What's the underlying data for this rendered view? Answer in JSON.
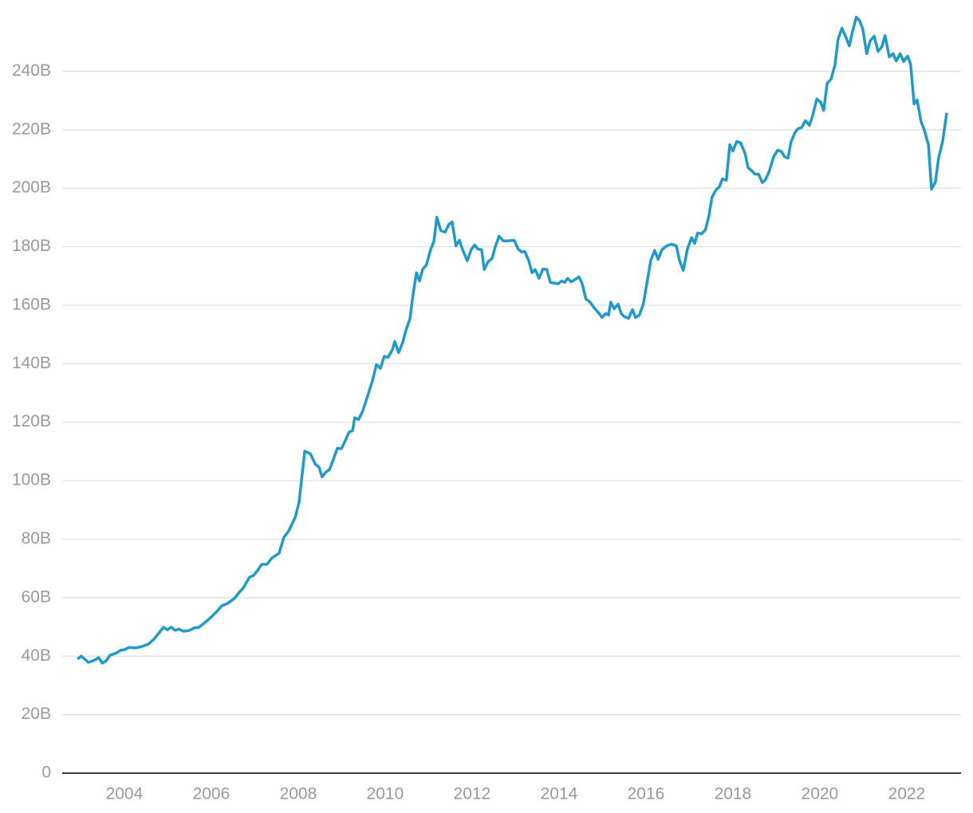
{
  "chart_data": {
    "type": "line",
    "x": [
      2002.92,
      2003.01,
      2003.17,
      2003.28,
      2003.41,
      2003.49,
      2003.58,
      2003.67,
      2003.82,
      2003.91,
      2004.0,
      2004.11,
      2004.26,
      2004.4,
      2004.55,
      2004.68,
      2004.81,
      2004.9,
      2004.99,
      2005.08,
      2005.17,
      2005.25,
      2005.36,
      2005.5,
      2005.6,
      2005.72,
      2005.83,
      2006.0,
      2006.13,
      2006.24,
      2006.37,
      2006.53,
      2006.64,
      2006.73,
      2006.88,
      2006.97,
      2007.06,
      2007.16,
      2007.28,
      2007.39,
      2007.56,
      2007.67,
      2007.78,
      2007.93,
      2008.02,
      2008.07,
      2008.15,
      2008.28,
      2008.39,
      2008.48,
      2008.55,
      2008.64,
      2008.72,
      2008.81,
      2008.9,
      2008.99,
      2009.08,
      2009.17,
      2009.25,
      2009.3,
      2009.39,
      2009.48,
      2009.6,
      2009.71,
      2009.8,
      2009.89,
      2009.98,
      2010.07,
      2010.17,
      2010.22,
      2010.31,
      2010.4,
      2010.48,
      2010.57,
      2010.64,
      2010.72,
      2010.79,
      2010.86,
      2010.95,
      2011.05,
      2011.12,
      2011.19,
      2011.28,
      2011.38,
      2011.47,
      2011.54,
      2011.63,
      2011.71,
      2011.78,
      2011.89,
      2011.98,
      2012.06,
      2012.13,
      2012.22,
      2012.28,
      2012.37,
      2012.46,
      2012.53,
      2012.62,
      2012.72,
      2012.81,
      2012.97,
      2013.06,
      2013.14,
      2013.21,
      2013.3,
      2013.38,
      2013.45,
      2013.54,
      2013.63,
      2013.72,
      2013.8,
      2013.91,
      2013.98,
      2014.06,
      2014.13,
      2014.2,
      2014.28,
      2014.35,
      2014.46,
      2014.53,
      2014.62,
      2014.7,
      2014.81,
      2014.94,
      2014.99,
      2015.08,
      2015.14,
      2015.19,
      2015.27,
      2015.36,
      2015.43,
      2015.5,
      2015.6,
      2015.69,
      2015.76,
      2015.85,
      2015.94,
      2016.02,
      2016.11,
      2016.2,
      2016.28,
      2016.37,
      2016.48,
      2016.59,
      2016.7,
      2016.77,
      2016.86,
      2016.95,
      2017.05,
      2017.12,
      2017.19,
      2017.28,
      2017.37,
      2017.45,
      2017.52,
      2017.61,
      2017.69,
      2017.76,
      2017.85,
      2017.93,
      2018.0,
      2018.09,
      2018.18,
      2018.28,
      2018.35,
      2018.44,
      2018.51,
      2018.59,
      2018.68,
      2018.75,
      2018.84,
      2018.94,
      2019.03,
      2019.12,
      2019.19,
      2019.27,
      2019.34,
      2019.43,
      2019.5,
      2019.58,
      2019.67,
      2019.76,
      2019.83,
      2019.93,
      2020.02,
      2020.09,
      2020.17,
      2020.26,
      2020.35,
      2020.42,
      2020.51,
      2020.59,
      2020.68,
      2020.75,
      2020.84,
      2020.92,
      2020.99,
      2021.08,
      2021.16,
      2021.25,
      2021.34,
      2021.43,
      2021.5,
      2021.6,
      2021.69,
      2021.76,
      2021.85,
      2021.93,
      2022.02,
      2022.09,
      2022.17,
      2022.24,
      2022.33,
      2022.4,
      2022.5,
      2022.57,
      2022.66,
      2022.73,
      2022.83,
      2022.92
    ],
    "values": [
      39.0,
      40.0,
      37.9,
      38.4,
      39.5,
      37.6,
      38.4,
      40.3,
      41.1,
      42.0,
      42.2,
      43.0,
      42.8,
      43.3,
      44.1,
      45.8,
      48.2,
      49.9,
      49.0,
      49.9,
      48.8,
      49.3,
      48.5,
      48.8,
      49.6,
      49.9,
      51.2,
      53.4,
      55.3,
      57.2,
      58.0,
      59.7,
      61.8,
      63.2,
      67.0,
      67.6,
      69.2,
      71.4,
      71.4,
      73.5,
      75.2,
      80.6,
      82.8,
      87.4,
      92.6,
      99.4,
      110.1,
      109.2,
      105.7,
      104.6,
      101.3,
      103.0,
      103.8,
      107.3,
      111.1,
      110.9,
      113.6,
      116.6,
      117.1,
      121.5,
      120.9,
      123.7,
      129.1,
      134.3,
      139.7,
      138.4,
      142.5,
      142.2,
      144.9,
      147.6,
      143.8,
      147.1,
      151.5,
      155.3,
      163.4,
      171.1,
      168.3,
      172.2,
      173.8,
      179.2,
      181.7,
      190.1,
      185.5,
      185.0,
      187.7,
      188.5,
      180.3,
      182.2,
      179.0,
      175.2,
      179.0,
      180.6,
      179.2,
      179.0,
      172.2,
      174.9,
      176.0,
      179.8,
      183.6,
      182.0,
      182.0,
      182.2,
      179.2,
      178.2,
      178.4,
      175.4,
      171.1,
      172.2,
      169.2,
      172.4,
      172.2,
      167.8,
      167.5,
      167.3,
      168.3,
      167.8,
      169.2,
      168.0,
      168.6,
      169.7,
      167.5,
      162.1,
      161.3,
      159.1,
      156.9,
      155.8,
      157.2,
      156.6,
      161.0,
      158.8,
      160.4,
      157.2,
      156.1,
      155.5,
      158.5,
      155.8,
      156.6,
      160.4,
      167.3,
      175.2,
      178.7,
      175.7,
      179.0,
      180.3,
      180.9,
      180.3,
      175.4,
      171.9,
      179.0,
      183.1,
      181.1,
      184.7,
      184.4,
      185.8,
      190.7,
      196.9,
      199.4,
      200.5,
      203.2,
      202.7,
      214.9,
      212.7,
      216.0,
      215.5,
      211.9,
      207.0,
      205.9,
      204.8,
      204.8,
      201.9,
      202.9,
      205.9,
      210.8,
      213.0,
      212.5,
      210.8,
      210.3,
      216.0,
      219.0,
      220.4,
      220.7,
      223.1,
      221.5,
      224.5,
      230.5,
      229.4,
      226.6,
      235.9,
      237.3,
      242.2,
      250.9,
      254.7,
      252.0,
      248.7,
      253.4,
      258.5,
      257.2,
      254.4,
      246.0,
      250.4,
      252.0,
      246.8,
      248.4,
      252.2,
      244.9,
      246.0,
      243.5,
      246.0,
      243.3,
      245.2,
      242.4,
      228.8,
      230.2,
      222.8,
      220.1,
      214.9,
      199.7,
      202.1,
      210.0,
      216.3,
      225.8
    ],
    "color": "#1f9ac9",
    "xlim": [
      2002.57,
      2023.25
    ],
    "xticks": [
      2004,
      2006,
      2008,
      2010,
      2012,
      2014,
      2016,
      2018,
      2020,
      2022
    ],
    "ylim": [
      0,
      260
    ],
    "yticks": [
      0,
      {
        "value": 20,
        "label": "20B"
      },
      {
        "value": 40,
        "label": "40B"
      },
      {
        "value": 60,
        "label": "60B"
      },
      {
        "value": 80,
        "label": "80B"
      },
      {
        "value": 100,
        "label": "100B"
      },
      {
        "value": 120,
        "label": "120B"
      },
      {
        "value": 140,
        "label": "140B"
      },
      {
        "value": 160,
        "label": "160B"
      },
      {
        "value": 180,
        "label": "180B"
      },
      {
        "value": 200,
        "label": "200B"
      },
      {
        "value": 220,
        "label": "220B"
      },
      {
        "value": 240,
        "label": "240B"
      }
    ],
    "grid": true
  }
}
